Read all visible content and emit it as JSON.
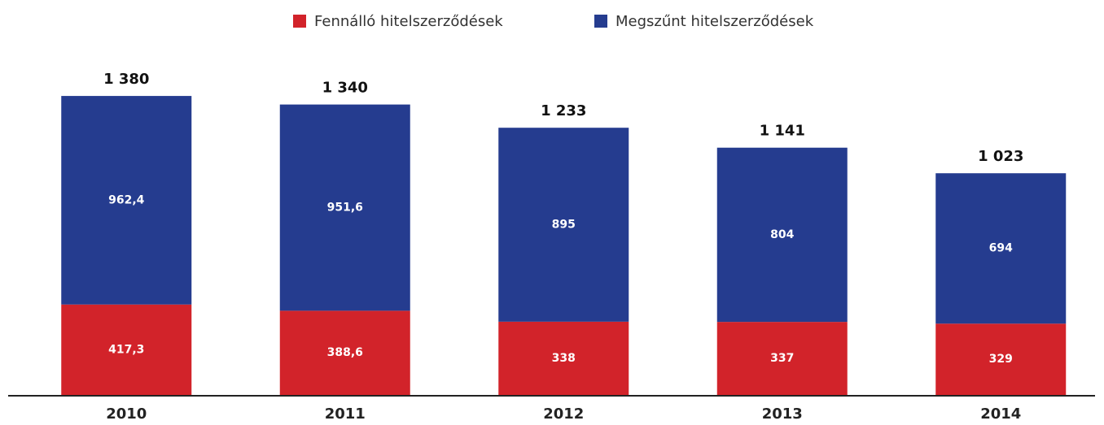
{
  "chart_data": {
    "type": "stacked_bar",
    "categories": [
      "2010",
      "2011",
      "2012",
      "2013",
      "2014"
    ],
    "series": [
      {
        "name": "Fennálló hitelszerződések",
        "color": "#d2232a",
        "values": [
          417.3,
          388.6,
          338,
          337,
          329
        ],
        "value_labels": [
          "417,3",
          "388,6",
          "338",
          "337",
          "329"
        ]
      },
      {
        "name": "Megszűnt hitelszerződések",
        "color": "#253c8f",
        "values": [
          962.4,
          951.6,
          895,
          804,
          694
        ],
        "value_labels": [
          "962,4",
          "951,6",
          "895",
          "804",
          "694"
        ]
      }
    ],
    "totals": [
      1380,
      1340,
      1233,
      1141,
      1023
    ],
    "total_labels": [
      "1 380",
      "1 340",
      "1 233",
      "1 141",
      "1 023"
    ],
    "legend": "top"
  }
}
